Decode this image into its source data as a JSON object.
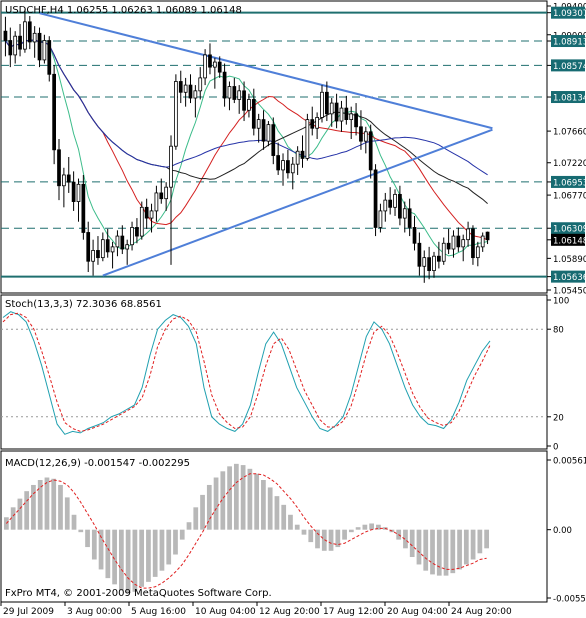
{
  "colors": {
    "background": "#ffffff",
    "frame": "#000000",
    "candle": "#000000",
    "trendline": "#4f7fd8",
    "level": "#1f6f6f",
    "level_badge": "#176b72",
    "ma_fast": "#3cbc8a",
    "ma_mid": "#d42020",
    "ma_slow": "#222222",
    "ma_long": "#2633a8",
    "stoch_main": "#20a0b0",
    "stoch_signal": "#e02020",
    "macd_hist": "#b8b8b8",
    "macd_signal": "#e02020"
  },
  "main_panel": {
    "header": "USDCHF,H4  1.06255 1.06263 1.06089 1.06148",
    "footer": "FxPro MT4, © 2001-2009 MetaQuotes Software Corp."
  },
  "stoch_panel": {
    "header": "Stoch(13,3,3) 72.3036 68.8561"
  },
  "macd_panel": {
    "header": "MACD(12,26,9) -0.001547 -0.002295"
  },
  "chart_data": [
    {
      "type": "candlestick",
      "title": "USDCHF,H4",
      "ohlc_last": {
        "open": 1.06255,
        "high": 1.06263,
        "low": 1.06089,
        "close": 1.06148
      },
      "ylim": [
        1.0545,
        1.094
      ],
      "price_ticks": [
        "1.09400",
        "1.09307",
        "1.09000",
        "1.08913",
        "1.08574",
        "1.08134",
        "1.07660",
        "1.07220",
        "1.06953",
        "1.06770",
        "1.06309",
        "1.06148",
        "1.05890",
        "1.05636",
        "1.05450"
      ],
      "highlighted_labels": [
        "1.09307",
        "1.08913",
        "1.08574",
        "1.08134",
        "1.06953",
        "1.06309",
        "1.06148",
        "1.05636"
      ],
      "horizontal_levels": [
        1.09307,
        1.08913,
        1.08574,
        1.08134,
        1.06953,
        1.06309,
        1.05636
      ],
      "solid_levels": [
        1.09307,
        1.05636
      ],
      "current_price": 1.06148,
      "x_labels": [
        "29 Jul 2009",
        "3 Aug 00:00",
        "5 Aug 16:00",
        "10 Aug 04:00",
        "12 Aug 20:00",
        "17 Aug 12:00",
        "20 Aug 04:00",
        "24 Aug 20:00"
      ],
      "candles": [
        [
          1.0905,
          1.0925,
          1.087,
          1.0892
        ],
        [
          1.0892,
          1.091,
          1.0855,
          1.0872
        ],
        [
          1.0872,
          1.0905,
          1.086,
          1.0898
        ],
        [
          1.0898,
          1.0915,
          1.087,
          1.088
        ],
        [
          1.088,
          1.0935,
          1.0875,
          1.0918
        ],
        [
          1.0918,
          1.0926,
          1.088,
          1.089
        ],
        [
          1.089,
          1.0912,
          1.0868,
          1.0902
        ],
        [
          1.0902,
          1.091,
          1.0855,
          1.0865
        ],
        [
          1.0865,
          1.09,
          1.086,
          1.0892
        ],
        [
          1.0892,
          1.0898,
          1.0835,
          1.0845
        ],
        [
          1.0845,
          1.0858,
          1.072,
          1.074
        ],
        [
          1.074,
          1.0755,
          1.067,
          1.069
        ],
        [
          1.069,
          1.0715,
          1.066,
          1.0705
        ],
        [
          1.0705,
          1.073,
          1.068,
          1.0695
        ],
        [
          1.0695,
          1.071,
          1.0655,
          1.0668
        ],
        [
          1.0668,
          1.07,
          1.064,
          1.0692
        ],
        [
          1.0692,
          1.0705,
          1.0615,
          1.0625
        ],
        [
          1.0625,
          1.064,
          1.057,
          1.0585
        ],
        [
          1.0585,
          1.0615,
          1.0565,
          1.06
        ],
        [
          1.06,
          1.062,
          1.058,
          1.059
        ],
        [
          1.059,
          1.0625,
          1.0585,
          1.0615
        ],
        [
          1.0615,
          1.063,
          1.059,
          1.0598
        ],
        [
          1.0598,
          1.0612,
          1.0575,
          1.0605
        ],
        [
          1.0605,
          1.0628,
          1.0592,
          1.062
        ],
        [
          1.062,
          1.0635,
          1.0595,
          1.0602
        ],
        [
          1.0602,
          1.0615,
          1.058,
          1.0608
        ],
        [
          1.0608,
          1.064,
          1.06,
          1.0632
        ],
        [
          1.0632,
          1.0645,
          1.061,
          1.062
        ],
        [
          1.062,
          1.0668,
          1.0615,
          1.066
        ],
        [
          1.066,
          1.0672,
          1.063,
          1.0645
        ],
        [
          1.0645,
          1.0665,
          1.0625,
          1.0655
        ],
        [
          1.0655,
          1.069,
          1.064,
          1.068
        ],
        [
          1.068,
          1.07,
          1.0665,
          1.0672
        ],
        [
          1.0672,
          1.0695,
          1.0655,
          1.0688
        ],
        [
          1.0688,
          1.076,
          1.058,
          1.0745
        ],
        [
          1.0745,
          1.0845,
          1.074,
          1.0835
        ],
        [
          1.0835,
          1.085,
          1.0805,
          1.082
        ],
        [
          1.082,
          1.084,
          1.08,
          1.083
        ],
        [
          1.083,
          1.0845,
          1.0805,
          1.0812
        ],
        [
          1.0812,
          1.083,
          1.0785,
          1.0822
        ],
        [
          1.0822,
          1.0855,
          1.081,
          1.084
        ],
        [
          1.084,
          1.088,
          1.083,
          1.0872
        ],
        [
          1.0872,
          1.0888,
          1.0845,
          1.0855
        ],
        [
          1.0855,
          1.0868,
          1.0825,
          1.0862
        ],
        [
          1.0862,
          1.087,
          1.084,
          1.0848
        ],
        [
          1.0848,
          1.086,
          1.08,
          1.0812
        ],
        [
          1.0812,
          1.0835,
          1.0795,
          1.0828
        ],
        [
          1.0828,
          1.084,
          1.0805,
          1.081
        ],
        [
          1.081,
          1.083,
          1.079,
          1.0822
        ],
        [
          1.0822,
          1.0835,
          1.078,
          1.0795
        ],
        [
          1.0795,
          1.0818,
          1.0785,
          1.081
        ],
        [
          1.081,
          1.0825,
          1.076,
          1.077
        ],
        [
          1.077,
          1.079,
          1.075,
          1.0782
        ],
        [
          1.0782,
          1.0795,
          1.074,
          1.0752
        ],
        [
          1.0752,
          1.078,
          1.0745,
          1.0775
        ],
        [
          1.0775,
          1.0785,
          1.072,
          1.0732
        ],
        [
          1.0732,
          1.075,
          1.0705,
          1.0712
        ],
        [
          1.0712,
          1.0735,
          1.069,
          1.0725
        ],
        [
          1.0725,
          1.074,
          1.07,
          1.0708
        ],
        [
          1.0708,
          1.073,
          1.0685,
          1.072
        ],
        [
          1.072,
          1.0745,
          1.0705,
          1.0738
        ],
        [
          1.0738,
          1.076,
          1.0715,
          1.0728
        ],
        [
          1.0728,
          1.079,
          1.0725,
          1.0782
        ],
        [
          1.0782,
          1.08,
          1.076,
          1.077
        ],
        [
          1.077,
          1.0792,
          1.0755,
          1.0785
        ],
        [
          1.0785,
          1.083,
          1.0778,
          1.082
        ],
        [
          1.082,
          1.0835,
          1.078,
          1.079
        ],
        [
          1.079,
          1.0812,
          1.0772,
          1.0805
        ],
        [
          1.0805,
          1.0818,
          1.077,
          1.078
        ],
        [
          1.078,
          1.0808,
          1.0765,
          1.0798
        ],
        [
          1.0798,
          1.0815,
          1.0775,
          1.0782
        ],
        [
          1.0782,
          1.08,
          1.0755,
          1.079
        ],
        [
          1.079,
          1.0805,
          1.076,
          1.0772
        ],
        [
          1.0772,
          1.0795,
          1.074,
          1.0752
        ],
        [
          1.0752,
          1.0772,
          1.0735,
          1.0765
        ],
        [
          1.0765,
          1.0775,
          1.07,
          1.0712
        ],
        [
          1.0712,
          1.072,
          1.062,
          1.0632
        ],
        [
          1.0632,
          1.0665,
          1.0625,
          1.0655
        ],
        [
          1.0655,
          1.068,
          1.064,
          1.067
        ],
        [
          1.067,
          1.0688,
          1.065,
          1.066
        ],
        [
          1.066,
          1.0685,
          1.0648,
          1.0678
        ],
        [
          1.0678,
          1.069,
          1.0635,
          1.0645
        ],
        [
          1.0645,
          1.0668,
          1.0625,
          1.0658
        ],
        [
          1.0658,
          1.0672,
          1.062,
          1.0632
        ],
        [
          1.0632,
          1.0648,
          1.06,
          1.061
        ],
        [
          1.061,
          1.0625,
          1.0565,
          1.0578
        ],
        [
          1.0578,
          1.06,
          1.0555,
          1.059
        ],
        [
          1.059,
          1.0605,
          1.056,
          1.0572
        ],
        [
          1.0572,
          1.0598,
          1.0562,
          1.0592
        ],
        [
          1.0592,
          1.0612,
          1.0575,
          1.0585
        ],
        [
          1.0585,
          1.0618,
          1.058,
          1.061
        ],
        [
          1.061,
          1.063,
          1.0595,
          1.0602
        ],
        [
          1.0602,
          1.0628,
          1.059,
          1.062
        ],
        [
          1.062,
          1.0632,
          1.0598,
          1.0605
        ],
        [
          1.0605,
          1.0622,
          1.0585,
          1.0615
        ],
        [
          1.0615,
          1.064,
          1.0605,
          1.063
        ],
        [
          1.063,
          1.0635,
          1.058,
          1.059
        ],
        [
          1.059,
          1.0612,
          1.0578,
          1.0605
        ],
        [
          1.0605,
          1.0625,
          1.0598,
          1.062
        ],
        [
          1.06255,
          1.06263,
          1.06089,
          1.06148
        ]
      ],
      "trendlines": [
        {
          "from": {
            "bar": 7,
            "price": 1.093
          },
          "to": {
            "bar": 100,
            "price": 1.077
          }
        },
        {
          "from": {
            "bar": 20,
            "price": 1.0565
          },
          "to": {
            "bar": 100,
            "price": 1.0768
          }
        }
      ]
    },
    {
      "type": "line",
      "title": "Stoch(13,3,3)",
      "ylim": [
        0,
        100
      ],
      "y_ticks": [
        "100",
        "80",
        "20",
        "0"
      ],
      "y_tick_values": [
        100,
        80,
        20,
        0
      ],
      "series": [
        {
          "name": "main",
          "values": [
            88,
            92,
            90,
            85,
            72,
            55,
            35,
            15,
            8,
            10,
            9,
            12,
            14,
            16,
            20,
            22,
            25,
            28,
            40,
            62,
            80,
            86,
            90,
            88,
            82,
            70,
            40,
            20,
            15,
            12,
            10,
            15,
            28,
            50,
            70,
            78,
            70,
            55,
            40,
            30,
            20,
            12,
            10,
            14,
            20,
            35,
            55,
            75,
            85,
            80,
            70,
            55,
            40,
            28,
            20,
            15,
            14,
            12,
            18,
            30,
            45,
            55,
            65,
            72
          ]
        },
        {
          "name": "signal",
          "values": [
            85,
            90,
            91,
            88,
            80,
            65,
            48,
            30,
            16,
            12,
            10,
            11,
            13,
            15,
            18,
            21,
            24,
            27,
            33,
            48,
            68,
            80,
            87,
            89,
            86,
            78,
            58,
            35,
            22,
            16,
            12,
            13,
            20,
            36,
            55,
            70,
            74,
            66,
            52,
            38,
            28,
            18,
            13,
            13,
            17,
            27,
            44,
            63,
            78,
            82,
            76,
            64,
            50,
            36,
            26,
            19,
            16,
            14,
            16,
            24,
            36,
            48,
            58,
            69
          ]
        }
      ]
    },
    {
      "type": "bar",
      "title": "MACD(12,26,9)",
      "ylim": [
        -0.0055,
        0.00561
      ],
      "y_ticks": [
        "0.00561",
        "0.00",
        "-0.00550"
      ],
      "y_tick_values": [
        0.00561,
        0,
        -0.0055
      ],
      "series": [
        {
          "name": "histogram",
          "values": [
            0.001,
            0.0018,
            0.0025,
            0.0031,
            0.0036,
            0.004,
            0.0042,
            0.0041,
            0.0036,
            0.0026,
            0.0012,
            -0.0002,
            -0.0014,
            -0.0024,
            -0.0032,
            -0.0039,
            -0.0044,
            -0.0049,
            -0.0051,
            -0.005,
            -0.0046,
            -0.0042,
            -0.0038,
            -0.0033,
            -0.0028,
            -0.002,
            -0.0008,
            0.0006,
            0.0018,
            0.0028,
            0.0036,
            0.0042,
            0.0047,
            0.0051,
            0.0053,
            0.0052,
            0.0049,
            0.0045,
            0.004,
            0.0034,
            0.0027,
            0.002,
            0.0012,
            0.0004,
            -0.0004,
            -0.001,
            -0.0015,
            -0.0017,
            -0.0017,
            -0.0014,
            -0.0008,
            -0.0002,
            0.0002,
            0.0004,
            0.0005,
            0.0004,
            0.0002,
            -0.0002,
            -0.0008,
            -0.0015,
            -0.0022,
            -0.0028,
            -0.0033,
            -0.0036,
            -0.0037,
            -0.0037,
            -0.0035,
            -0.0032,
            -0.0028,
            -0.0024,
            -0.0019,
            -0.0015
          ]
        },
        {
          "name": "signal",
          "values": [
            0.0005,
            0.0011,
            0.0017,
            0.0023,
            0.0029,
            0.0034,
            0.0038,
            0.004,
            0.0039,
            0.0036,
            0.003,
            0.0022,
            0.0013,
            0.0004,
            -0.0006,
            -0.0015,
            -0.0024,
            -0.0032,
            -0.0039,
            -0.0044,
            -0.0047,
            -0.0047,
            -0.0046,
            -0.0043,
            -0.0039,
            -0.0034,
            -0.0028,
            -0.002,
            -0.0011,
            -0.0002,
            0.0008,
            0.0017,
            0.0025,
            0.0032,
            0.0038,
            0.0042,
            0.0045,
            0.0045,
            0.0044,
            0.0041,
            0.0037,
            0.0031,
            0.0025,
            0.0018,
            0.001,
            0.0003,
            -0.0003,
            -0.0008,
            -0.0011,
            -0.0012,
            -0.0011,
            -0.0008,
            -0.0005,
            -0.0002,
            0.0,
            0.0001,
            0.0001,
            -0.0001,
            -0.0004,
            -0.0008,
            -0.0013,
            -0.0018,
            -0.0023,
            -0.0027,
            -0.003,
            -0.0032,
            -0.0032,
            -0.0031,
            -0.0029,
            -0.0027,
            -0.0024,
            -0.0023
          ]
        }
      ]
    }
  ]
}
